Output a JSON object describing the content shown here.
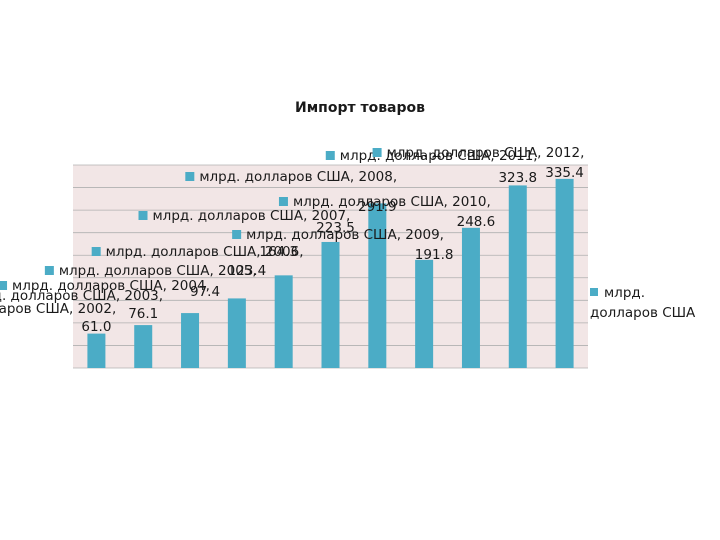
{
  "chart_data": {
    "type": "bar",
    "title": "Импорт товаров",
    "series": [
      {
        "name": "млрд. долларов США",
        "values": [
          61.0,
          76.1,
          97.4,
          123.4,
          164.3,
          223.5,
          291.9,
          191.8,
          248.6,
          323.8,
          335.4
        ]
      }
    ],
    "categories": [
      "2002",
      "2003",
      "2004",
      "2005",
      "2006",
      "2007",
      "2008",
      "2009",
      "2010",
      "2011",
      "2012"
    ],
    "label_values": [
      "61.0",
      "76.1",
      "97.4",
      "123.4",
      "164.3",
      "223.5",
      "291.9",
      "191.8",
      "248.6",
      "323.8",
      "335.4"
    ],
    "ylim": [
      0,
      360
    ],
    "grid": true,
    "legend": {
      "position": "right",
      "label": "млрд. долларов США"
    },
    "colors": {
      "bar": "#4bacc6",
      "plot_background": "#f2e6e6",
      "gridline": "#b0b0b0",
      "marker": "#4bacc6"
    }
  }
}
